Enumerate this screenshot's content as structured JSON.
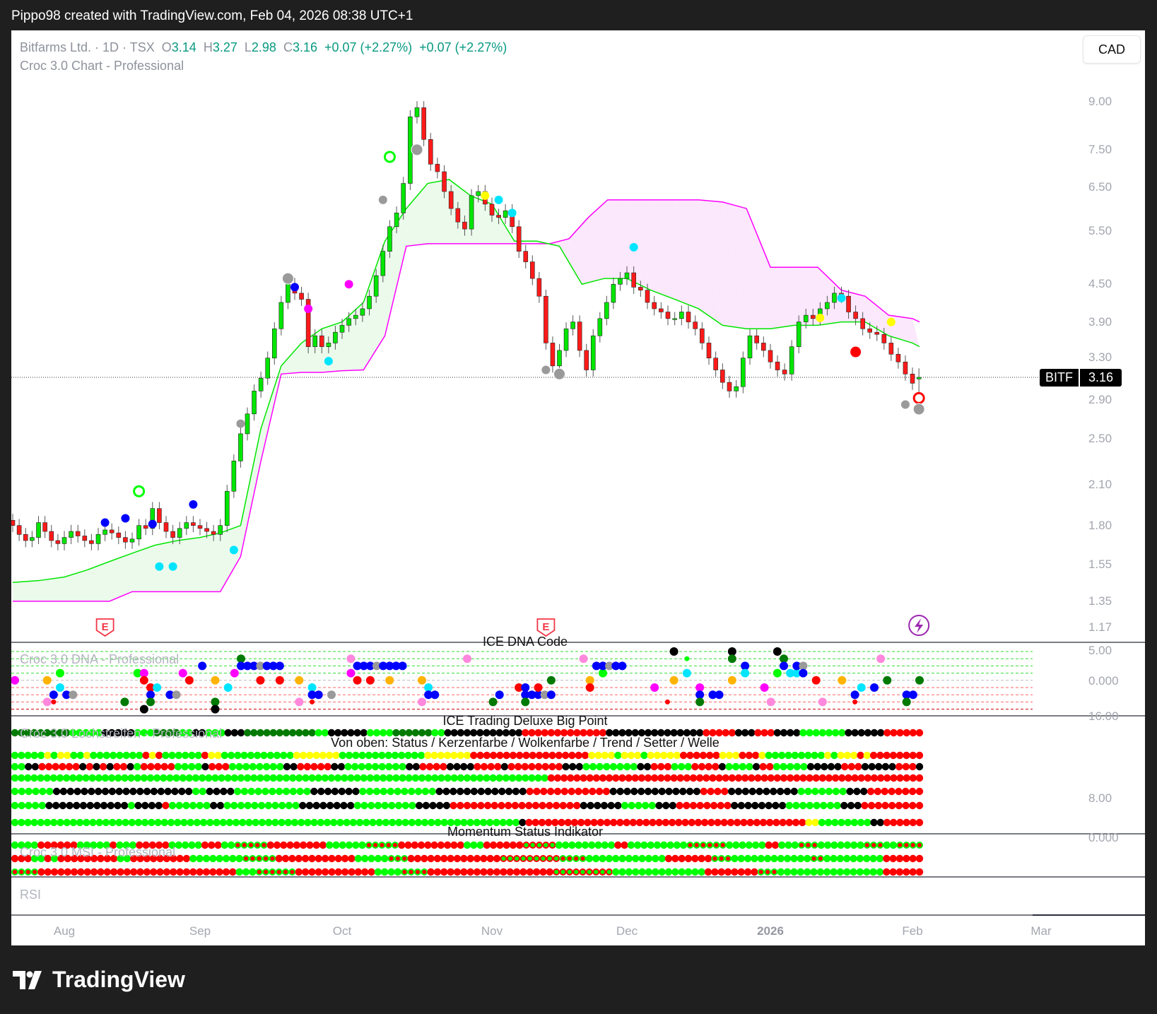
{
  "header": {
    "attribution": "Pippo98 created with TradingView.com, Feb 04, 2026 08:38 UTC+1"
  },
  "legend": {
    "symbol": "Bitfarms Ltd. · 1D · TSX",
    "o_label": "O",
    "o": "3.14",
    "h_label": "H",
    "h": "3.27",
    "l_label": "L",
    "l": "2.98",
    "c_label": "C",
    "c": "3.16",
    "change": "+0.07 (+2.27%)",
    "change_2": "+0.07 (+2.27%)",
    "indicator": "Croc 3.0 Chart - Professional"
  },
  "currency_button": "CAD",
  "price_label": {
    "symbol": "BITF",
    "value": "3.16"
  },
  "panes": {
    "dna": {
      "title": "ICE DNA Code",
      "label": "Croc 3.0 DNA - Professional",
      "axis": [
        "5.00",
        "0.000"
      ]
    },
    "strip": {
      "title": "ICE Trading Deluxe Big Point",
      "label": "Croc 3.0 Lochstreifen - Professional",
      "subtitle": "Von oben: Status / Kerzenfarbe / Wolkenfarbe / Trend / Setter / Welle",
      "axis": [
        "16.00",
        "8.00"
      ]
    },
    "msi": {
      "title": "Momentum Status Indikator",
      "label": "Croc 3.0 MSI - Professional",
      "axis": [
        "0.000"
      ]
    },
    "rsi": {
      "label": "RSI"
    }
  },
  "footer": {
    "logo_text": "TradingView"
  },
  "colors": {
    "up": "#00e600",
    "down": "#ff1a1a",
    "green_line": "#00e600",
    "magenta_line": "#ff00ff",
    "green_fill": "#ebfaeb",
    "pink_fill": "#fce8fc",
    "legend_value": "#089981",
    "earnings": "#f23645",
    "dividend_event": "#9c27b0",
    "G": "#00ff00",
    "D": "#007a00",
    "K": "#000000",
    "R": "#ff0000",
    "Y": "#ffff00",
    "O": "#ffb300",
    "C": "#00e5ff",
    "B": "#0000ff",
    "M": "#ff00ff",
    "P": "#ff88dd",
    "A": "#9a9a9a",
    "r": "#ff0000",
    "g": "#00ff00"
  },
  "chart_data": {
    "type": "candlestick",
    "symbol": "BITF",
    "y_scale": "log",
    "price_ticks": [
      "9.00",
      "7.50",
      "6.50",
      "5.50",
      "4.50",
      "3.90",
      "3.30",
      "2.90",
      "2.50",
      "2.10",
      "1.80",
      "1.55",
      "1.35",
      "1.17"
    ],
    "x_ticks": [
      "Aug",
      "Sep",
      "Oct",
      "Nov",
      "Dec",
      "2026",
      "Feb",
      "Mar"
    ],
    "last_bar": {
      "open": 3.14,
      "high": 3.27,
      "low": 2.98,
      "close": 3.16
    },
    "closes_by_month": {
      "Jul": [
        1.8,
        1.74,
        1.7,
        1.72,
        1.82,
        1.76,
        1.7,
        1.68
      ],
      "Aug": [
        1.72,
        1.76,
        1.73,
        1.7,
        1.68,
        1.74,
        1.77,
        1.75,
        1.72,
        1.69,
        1.71,
        1.8,
        1.78,
        1.92,
        1.82,
        1.76,
        1.72,
        1.78,
        1.82,
        1.8
      ],
      "Sep": [
        1.78,
        1.76,
        1.74,
        1.8,
        2.05,
        2.3,
        2.55,
        2.75,
        3.0,
        3.15,
        3.4,
        3.8,
        4.2,
        4.5,
        4.35,
        4.25,
        3.55,
        3.7,
        3.55,
        3.6,
        3.75
      ],
      "Oct": [
        3.85,
        3.95,
        4.0,
        4.1,
        4.3,
        4.65,
        5.1,
        5.6,
        5.9,
        6.6,
        8.5,
        8.8,
        7.8,
        7.1,
        6.9,
        6.4,
        6.0,
        5.7,
        5.55,
        6.3,
        6.4,
        6.1
      ],
      "Nov": [
        5.85,
        5.8,
        5.95,
        5.6,
        5.1,
        4.9,
        4.6,
        4.3,
        3.6,
        3.3,
        3.5,
        3.8,
        3.9,
        3.5,
        3.25,
        3.7,
        3.95,
        4.2,
        4.5,
        4.6
      ],
      "Dec": [
        4.7,
        4.45,
        4.4,
        4.2,
        4.1,
        4.05,
        3.95,
        3.95,
        4.05,
        3.9,
        3.8,
        3.6,
        3.4,
        3.25,
        3.1,
        3.0,
        3.05,
        3.4,
        3.7,
        3.6,
        3.5
      ],
      "Jan": [
        3.35,
        3.25,
        3.2,
        3.55,
        3.9,
        4.0,
        3.95,
        4.1,
        4.2,
        4.35,
        4.3,
        4.05,
        3.95,
        3.8,
        3.75,
        3.72,
        3.6,
        3.45,
        3.35,
        3.2
      ],
      "Feb": [
        3.09,
        3.16
      ]
    },
    "green_line_by_month": {
      "Jul": [
        1.45,
        1.46
      ],
      "Aug": [
        1.48,
        1.52,
        1.57,
        1.62,
        1.67,
        1.7
      ],
      "Sep": [
        1.72,
        1.75,
        1.8,
        2.6,
        3.3,
        3.6,
        3.8
      ],
      "Oct": [
        3.9,
        4.2,
        5.3,
        6.0,
        6.6,
        6.7,
        6.3
      ],
      "Nov": [
        6.1,
        5.3,
        5.3,
        5.2,
        4.5,
        4.6
      ],
      "Dec": [
        4.6,
        4.4,
        4.25,
        4.1,
        3.85,
        3.8
      ],
      "Jan": [
        3.8,
        3.85,
        3.85,
        3.9,
        3.9,
        3.7
      ],
      "Feb": [
        3.6,
        3.55
      ]
    },
    "magenta_line_by_month": {
      "Jul": [
        1.35,
        1.35
      ],
      "Aug": [
        1.35,
        1.35,
        1.35,
        1.4,
        1.4,
        1.4
      ],
      "Sep": [
        1.4,
        1.4,
        1.6,
        2.3,
        3.2,
        3.22,
        3.22
      ],
      "Oct": [
        3.24,
        3.25,
        3.7,
        5.2,
        5.25,
        5.25,
        5.25
      ],
      "Nov": [
        5.25,
        5.25,
        5.25,
        5.25,
        5.35,
        5.8,
        6.2
      ],
      "Dec": [
        6.2,
        6.2,
        6.2,
        6.2,
        6.15,
        6.0
      ],
      "Jan": [
        4.8,
        4.8,
        4.8,
        4.4,
        4.3,
        4.0
      ],
      "Feb": [
        3.95,
        3.9
      ]
    },
    "markers": [
      [
        "Aug",
        11,
        2.05,
        "G",
        "ring"
      ],
      [
        "Oct",
        7,
        7.3,
        "G",
        "ring"
      ],
      [
        "Feb",
        1,
        2.92,
        "R",
        "ring"
      ],
      [
        "Jan",
        12,
        3.48,
        "R",
        "big"
      ],
      [
        "Aug",
        6,
        1.82,
        "B",
        "dot"
      ],
      [
        "Aug",
        9,
        1.85,
        "B",
        "dot"
      ],
      [
        "Aug",
        13,
        1.81,
        "B",
        "dot"
      ],
      [
        "Aug",
        19,
        1.95,
        "B",
        "dot"
      ],
      [
        "Sep",
        14,
        4.45,
        "B",
        "dot"
      ],
      [
        "Aug",
        14,
        1.54,
        "C",
        "dot"
      ],
      [
        "Aug",
        16,
        1.54,
        "C",
        "dot"
      ],
      [
        "Sep",
        5,
        1.64,
        "C",
        "dot"
      ],
      [
        "Sep",
        19,
        3.36,
        "C",
        "dot"
      ],
      [
        "Nov",
        1,
        6.2,
        "C",
        "dot"
      ],
      [
        "Nov",
        3,
        5.9,
        "C",
        "dot"
      ],
      [
        "Dec",
        1,
        5.18,
        "C",
        "dot"
      ],
      [
        "Jan",
        10,
        4.27,
        "C",
        "dot"
      ],
      [
        "Sep",
        16,
        4.1,
        "M",
        "dot"
      ],
      [
        "Oct",
        1,
        4.5,
        "M",
        "dot"
      ],
      [
        "Oct",
        21,
        6.3,
        "Y",
        "dot"
      ],
      [
        "Jan",
        7,
        3.96,
        "Y",
        "dot"
      ],
      [
        "Jan",
        17,
        3.9,
        "Y",
        "dot"
      ],
      [
        "Sep",
        13,
        4.6,
        "A",
        "big"
      ],
      [
        "Sep",
        6,
        2.65,
        "A",
        "dot"
      ],
      [
        "Oct",
        6,
        6.2,
        "A",
        "dot"
      ],
      [
        "Oct",
        11,
        7.5,
        "A",
        "big"
      ],
      [
        "Nov",
        8,
        3.25,
        "A",
        "dot"
      ],
      [
        "Nov",
        10,
        3.2,
        "A",
        "big"
      ],
      [
        "Jan",
        19,
        2.85,
        "A",
        "dot"
      ],
      [
        "Feb",
        1,
        2.8,
        "A",
        "big"
      ]
    ],
    "events": [
      {
        "month": "Aug",
        "idx": 6,
        "label": "E",
        "kind": "earnings"
      },
      {
        "month": "Nov",
        "idx": 8,
        "label": "E",
        "kind": "earnings"
      },
      {
        "month": "Feb",
        "idx": 1,
        "label": "",
        "kind": "lightning"
      }
    ],
    "dna_points": [
      [
        0,
        4,
        "M"
      ],
      [
        5,
        4,
        "O"
      ],
      [
        7,
        3,
        "G"
      ],
      [
        7,
        5,
        "C"
      ],
      [
        6,
        6,
        "B"
      ],
      [
        8,
        6,
        "B"
      ],
      [
        9,
        6,
        "A"
      ],
      [
        5,
        7,
        "P"
      ],
      [
        6,
        7,
        "r"
      ],
      [
        17,
        7,
        "D"
      ],
      [
        19,
        3,
        "G"
      ],
      [
        20,
        3,
        "M"
      ],
      [
        20,
        4,
        "R"
      ],
      [
        21,
        5,
        "R"
      ],
      [
        22,
        5,
        "C"
      ],
      [
        21,
        6,
        "B"
      ],
      [
        24,
        6,
        "B"
      ],
      [
        25,
        6,
        "A"
      ],
      [
        20,
        8,
        "K"
      ],
      [
        21,
        7,
        "D"
      ],
      [
        26,
        3,
        "M"
      ],
      [
        27,
        4,
        "R"
      ],
      [
        29,
        2,
        "B"
      ],
      [
        31,
        4,
        "O"
      ],
      [
        31,
        7,
        "D"
      ],
      [
        31,
        8,
        "K"
      ],
      [
        33,
        5,
        "C"
      ],
      [
        34,
        3,
        "M"
      ],
      [
        35,
        1,
        "D"
      ],
      [
        35,
        2,
        "B"
      ],
      [
        36,
        2,
        "B"
      ],
      [
        37,
        2,
        "B"
      ],
      [
        38,
        2,
        "A"
      ],
      [
        39,
        2,
        "B"
      ],
      [
        40,
        2,
        "B"
      ],
      [
        41,
        2,
        "B"
      ],
      [
        38,
        4,
        "R"
      ],
      [
        41,
        4,
        "R"
      ],
      [
        44,
        4,
        "O"
      ],
      [
        46,
        5,
        "C"
      ],
      [
        46,
        6,
        "B"
      ],
      [
        47,
        6,
        "B"
      ],
      [
        49,
        6,
        "A"
      ],
      [
        44,
        7,
        "P"
      ],
      [
        46,
        7,
        "r"
      ],
      [
        52,
        1,
        "P"
      ],
      [
        52,
        3,
        "M"
      ],
      [
        53,
        4,
        "R"
      ],
      [
        53,
        2,
        "B"
      ],
      [
        54,
        2,
        "B"
      ],
      [
        55,
        2,
        "B"
      ],
      [
        56,
        2,
        "A"
      ],
      [
        57,
        2,
        "B"
      ],
      [
        58,
        2,
        "B"
      ],
      [
        59,
        2,
        "B"
      ],
      [
        60,
        2,
        "B"
      ],
      [
        55,
        4,
        "R"
      ],
      [
        58,
        4,
        "O"
      ],
      [
        63,
        4,
        "O"
      ],
      [
        64,
        5,
        "C"
      ],
      [
        64,
        6,
        "B"
      ],
      [
        65,
        6,
        "B"
      ],
      [
        63,
        7,
        "P"
      ],
      [
        70,
        1,
        "P"
      ],
      [
        74,
        7,
        "D"
      ],
      [
        75,
        6,
        "B"
      ],
      [
        78,
        5,
        "R"
      ],
      [
        79,
        5,
        "B"
      ],
      [
        79,
        6,
        "B"
      ],
      [
        80,
        6,
        "B"
      ],
      [
        81,
        6,
        "B"
      ],
      [
        82,
        6,
        "A"
      ],
      [
        83,
        6,
        "B"
      ],
      [
        79,
        7,
        "D"
      ],
      [
        81,
        5,
        "R"
      ],
      [
        83,
        4,
        "D"
      ],
      [
        88,
        1,
        "P"
      ],
      [
        89,
        4,
        "O"
      ],
      [
        89,
        5,
        "R"
      ],
      [
        90,
        2,
        "B"
      ],
      [
        91,
        3,
        "G"
      ],
      [
        91,
        2,
        "B"
      ],
      [
        92,
        2,
        "A"
      ],
      [
        93,
        2,
        "B"
      ],
      [
        94,
        2,
        "B"
      ],
      [
        99,
        5,
        "M"
      ],
      [
        101,
        7,
        "r"
      ],
      [
        102,
        0,
        "K"
      ],
      [
        102,
        4,
        "O"
      ],
      [
        104,
        1,
        "g"
      ],
      [
        104,
        3,
        "C"
      ],
      [
        106,
        5,
        "M"
      ],
      [
        106,
        6,
        "B"
      ],
      [
        108,
        6,
        "B"
      ],
      [
        109,
        6,
        "B"
      ],
      [
        106,
        7,
        "D"
      ],
      [
        111,
        0,
        "K"
      ],
      [
        111,
        1,
        "D"
      ],
      [
        111,
        4,
        "O"
      ],
      [
        113,
        2,
        "B"
      ],
      [
        113,
        3,
        "C"
      ],
      [
        116,
        5,
        "M"
      ],
      [
        117,
        7,
        "P"
      ],
      [
        118,
        0,
        "K"
      ],
      [
        119,
        1,
        "D"
      ],
      [
        118,
        3,
        "G"
      ],
      [
        119,
        2,
        "B"
      ],
      [
        120,
        3,
        "C"
      ],
      [
        121,
        3,
        "C"
      ],
      [
        121,
        2,
        "B"
      ],
      [
        122,
        2,
        "A"
      ],
      [
        122,
        3,
        "B"
      ],
      [
        124,
        4,
        "R"
      ],
      [
        125,
        7,
        "P"
      ],
      [
        128,
        4,
        "O"
      ],
      [
        130,
        6,
        "B"
      ],
      [
        130,
        7,
        "r"
      ],
      [
        131,
        5,
        "C"
      ],
      [
        133,
        5,
        "B"
      ],
      [
        134,
        1,
        "P"
      ],
      [
        135,
        4,
        "D"
      ],
      [
        138,
        6,
        "B"
      ],
      [
        139,
        6,
        "B"
      ],
      [
        138,
        7,
        "D"
      ],
      [
        140,
        4,
        "D"
      ]
    ],
    "strip_rows": [
      "D3 D6 G5 K5 G3 D4 G2 K2 G3 K3 D11 G2 K6 G4 D6 G2 K12 R13 K15 R5 K3 R3 K4 G7 K6 R6",
      "G5 Y1 G1 Y2 G2 Y1 G8 R1 Y1 R1 G6 R1 Y2 G11 Y7 G13 Y7 R18 Y4 G1 Y3 G1 Y5 R6 Y3 R3 Y1 G9 Y1 G1 Y3 R1 Y1 R8",
      "G2 K2 R6 K1 R1 K1 R1 K1 R2 K1 G1 R5 G4 K1 R3 G8 K2 R5 K2 G9 K2 R4 K4 R4 K1 R8 K3 G8 K2 R3 G3 R4 K1 G4 K1 R2 G5 K5 R3 K5 R3 K1",
      "G83 R58",
      "G6 K20 G2 K4 G11 K7 G11 K13 R12 K13 R4 K10 G7 K3 R8",
      "G5 K12 G1 K4 R1 G6 K2 G11 K8 G9 K5 R19 K6 G5 K3 R8 K8 G8 K3 R9",
      "G78 K1 R43 Y2 G8 K2 R6"
    ],
    "msi_rows": [
      "G4 R6 G5 R1 G3 R5 G5 R3 G2 r5 R9 G6 r5 R10 G3 R6 g5 G9 R2 G9 r6 G6 R2 G3 r3 G7 r3 G2 r4",
      "R3 G2 R1 G1 R9 G2 R9 G8 r5 R12 G5 r3 R14 g9 r4 G7 G5 R7 r3 G12 r2 G9 R6",
      "r4 R30 G3 r6 R12 G4 r4 R19 g9 G4 G10 R8 r3 G16 R6"
    ]
  }
}
